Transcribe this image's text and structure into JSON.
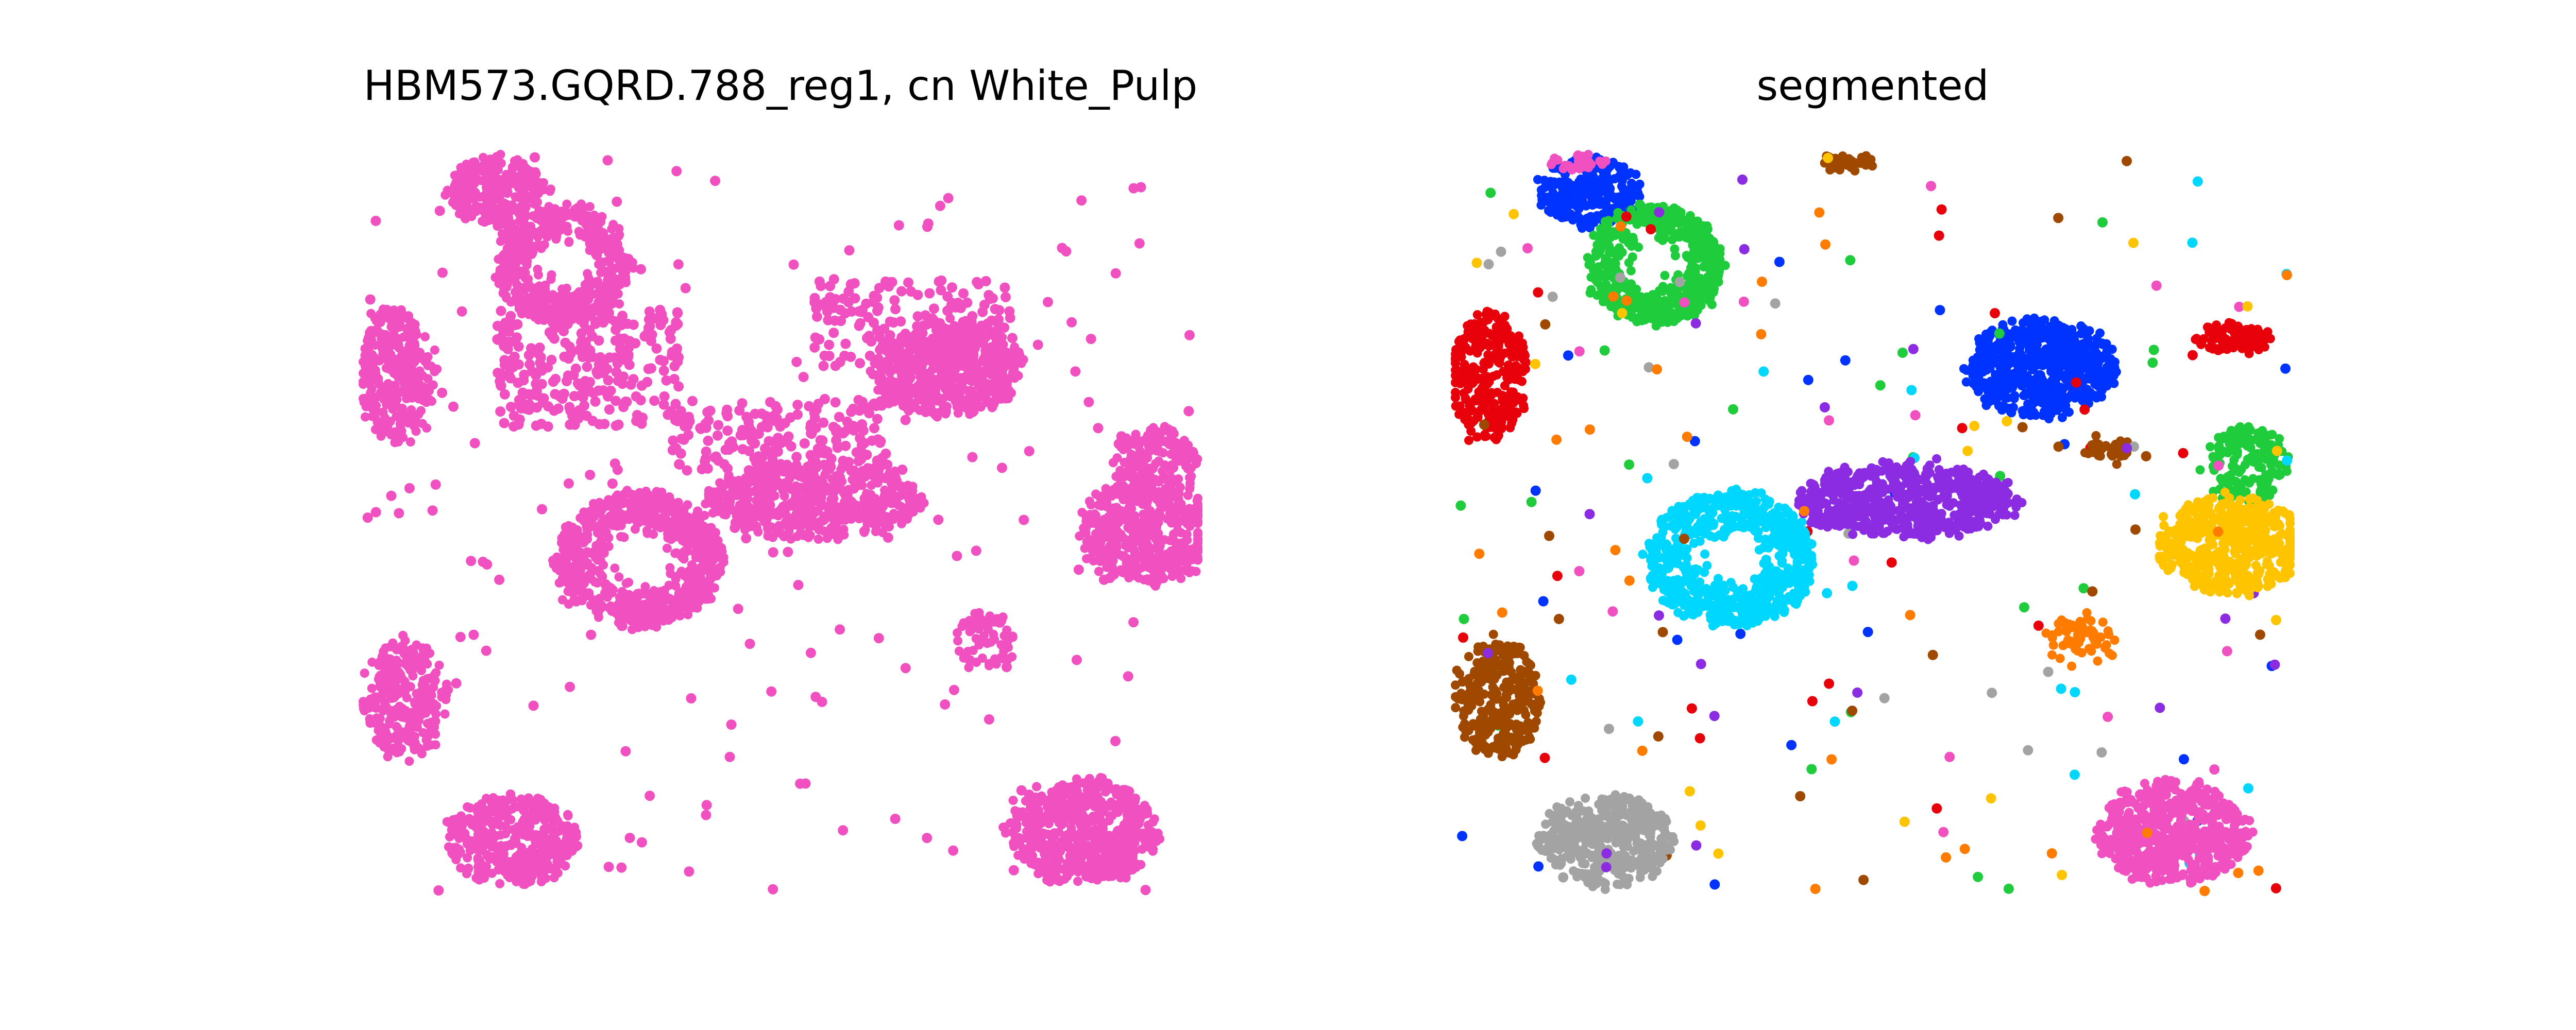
{
  "figure": {
    "background": "#ffffff"
  },
  "chart_data": [
    {
      "type": "scatter",
      "title": "HBM573.GQRD.788_reg1, cn White_Pulp",
      "axes_visible": false,
      "grid": false,
      "point_color": "#f050c0",
      "series": [
        {
          "color": "#f050c0",
          "clusters": [
            {
              "cx": 0.16,
              "cy": 0.05,
              "rx": 0.06,
              "ry": 0.045,
              "n": 260
            },
            {
              "cx": 0.24,
              "cy": 0.15,
              "rx": 0.08,
              "ry": 0.08,
              "n": 520,
              "hole": true
            },
            {
              "cx": 0.04,
              "cy": 0.3,
              "rx": 0.045,
              "ry": 0.09,
              "n": 300
            },
            {
              "cx": 0.33,
              "cy": 0.55,
              "rx": 0.1,
              "ry": 0.09,
              "n": 700,
              "hole": true
            },
            {
              "cx": 0.05,
              "cy": 0.74,
              "rx": 0.05,
              "ry": 0.08,
              "n": 280
            },
            {
              "cx": 0.18,
              "cy": 0.93,
              "rx": 0.08,
              "ry": 0.06,
              "n": 380
            },
            {
              "cx": 0.86,
              "cy": 0.92,
              "rx": 0.09,
              "ry": 0.07,
              "n": 560
            },
            {
              "cx": 0.54,
              "cy": 0.47,
              "rx": 0.13,
              "ry": 0.05,
              "n": 600
            },
            {
              "cx": 0.7,
              "cy": 0.29,
              "rx": 0.09,
              "ry": 0.065,
              "n": 560
            },
            {
              "cx": 0.94,
              "cy": 0.51,
              "rx": 0.08,
              "ry": 0.07,
              "n": 460
            },
            {
              "cx": 0.95,
              "cy": 0.42,
              "rx": 0.05,
              "ry": 0.05,
              "n": 160
            },
            {
              "cx": 0.27,
              "cy": 0.29,
              "rx": 0.11,
              "ry": 0.08,
              "n": 260,
              "sparse": true
            },
            {
              "cx": 0.5,
              "cy": 0.38,
              "rx": 0.13,
              "ry": 0.05,
              "n": 200,
              "sparse": true
            },
            {
              "cx": 0.66,
              "cy": 0.23,
              "rx": 0.12,
              "ry": 0.06,
              "n": 180,
              "sparse": true
            },
            {
              "cx": 0.75,
              "cy": 0.66,
              "rx": 0.04,
              "ry": 0.04,
              "n": 60
            },
            {
              "cx": 0.5,
              "cy": 0.5,
              "rx": 0.5,
              "ry": 0.5,
              "n": 170,
              "sparse": true
            }
          ]
        }
      ]
    },
    {
      "type": "scatter",
      "title": "segmented",
      "axes_visible": false,
      "grid": false,
      "series": [
        {
          "color": "#0033ff",
          "clusters": [
            {
              "cx": 0.16,
              "cy": 0.05,
              "rx": 0.06,
              "ry": 0.045,
              "n": 260
            },
            {
              "cx": 0.7,
              "cy": 0.29,
              "rx": 0.09,
              "ry": 0.065,
              "n": 560
            },
            {
              "cx": 0.5,
              "cy": 0.5,
              "rx": 0.5,
              "ry": 0.5,
              "n": 25,
              "sparse": true
            }
          ]
        },
        {
          "color": "#1ecc3c",
          "clusters": [
            {
              "cx": 0.24,
              "cy": 0.15,
              "rx": 0.08,
              "ry": 0.08,
              "n": 520,
              "hole": true
            },
            {
              "cx": 0.95,
              "cy": 0.42,
              "rx": 0.05,
              "ry": 0.05,
              "n": 160
            },
            {
              "cx": 0.5,
              "cy": 0.5,
              "rx": 0.5,
              "ry": 0.5,
              "n": 25,
              "sparse": true
            }
          ]
        },
        {
          "color": "#e8000b",
          "clusters": [
            {
              "cx": 0.04,
              "cy": 0.3,
              "rx": 0.045,
              "ry": 0.09,
              "n": 300
            },
            {
              "cx": 0.93,
              "cy": 0.25,
              "rx": 0.045,
              "ry": 0.02,
              "n": 90
            },
            {
              "cx": 0.5,
              "cy": 0.5,
              "rx": 0.5,
              "ry": 0.5,
              "n": 25,
              "sparse": true
            }
          ]
        },
        {
          "color": "#00d7ff",
          "clusters": [
            {
              "cx": 0.33,
              "cy": 0.55,
              "rx": 0.1,
              "ry": 0.09,
              "n": 700,
              "hole": true
            },
            {
              "cx": 0.5,
              "cy": 0.5,
              "rx": 0.5,
              "ry": 0.5,
              "n": 20,
              "sparse": true
            }
          ]
        },
        {
          "color": "#9f4800",
          "clusters": [
            {
              "cx": 0.05,
              "cy": 0.74,
              "rx": 0.05,
              "ry": 0.08,
              "n": 280
            },
            {
              "cx": 0.47,
              "cy": 0.01,
              "rx": 0.03,
              "ry": 0.01,
              "n": 40
            },
            {
              "cx": 0.78,
              "cy": 0.4,
              "rx": 0.03,
              "ry": 0.015,
              "n": 40
            },
            {
              "cx": 0.5,
              "cy": 0.5,
              "rx": 0.5,
              "ry": 0.5,
              "n": 20,
              "sparse": true
            }
          ]
        },
        {
          "color": "#a3a3a3",
          "clusters": [
            {
              "cx": 0.18,
              "cy": 0.93,
              "rx": 0.08,
              "ry": 0.06,
              "n": 380
            },
            {
              "cx": 0.5,
              "cy": 0.5,
              "rx": 0.5,
              "ry": 0.5,
              "n": 18,
              "sparse": true
            }
          ]
        },
        {
          "color": "#f050c0",
          "clusters": [
            {
              "cx": 0.86,
              "cy": 0.92,
              "rx": 0.09,
              "ry": 0.07,
              "n": 560
            },
            {
              "cx": 0.15,
              "cy": 0.01,
              "rx": 0.04,
              "ry": 0.01,
              "n": 30
            },
            {
              "cx": 0.5,
              "cy": 0.5,
              "rx": 0.5,
              "ry": 0.5,
              "n": 20,
              "sparse": true
            }
          ]
        },
        {
          "color": "#8b2be2",
          "clusters": [
            {
              "cx": 0.54,
              "cy": 0.47,
              "rx": 0.13,
              "ry": 0.05,
              "n": 600
            },
            {
              "cx": 0.5,
              "cy": 0.5,
              "rx": 0.5,
              "ry": 0.5,
              "n": 20,
              "sparse": true
            }
          ]
        },
        {
          "color": "#ffc400",
          "clusters": [
            {
              "cx": 0.93,
              "cy": 0.53,
              "rx": 0.09,
              "ry": 0.065,
              "n": 460
            },
            {
              "cx": 0.5,
              "cy": 0.5,
              "rx": 0.5,
              "ry": 0.5,
              "n": 18,
              "sparse": true
            }
          ]
        },
        {
          "color": "#ff7c00",
          "clusters": [
            {
              "cx": 0.75,
              "cy": 0.66,
              "rx": 0.04,
              "ry": 0.035,
              "n": 60
            },
            {
              "cx": 0.5,
              "cy": 0.5,
              "rx": 0.5,
              "ry": 0.5,
              "n": 30,
              "sparse": true
            }
          ]
        }
      ]
    }
  ]
}
